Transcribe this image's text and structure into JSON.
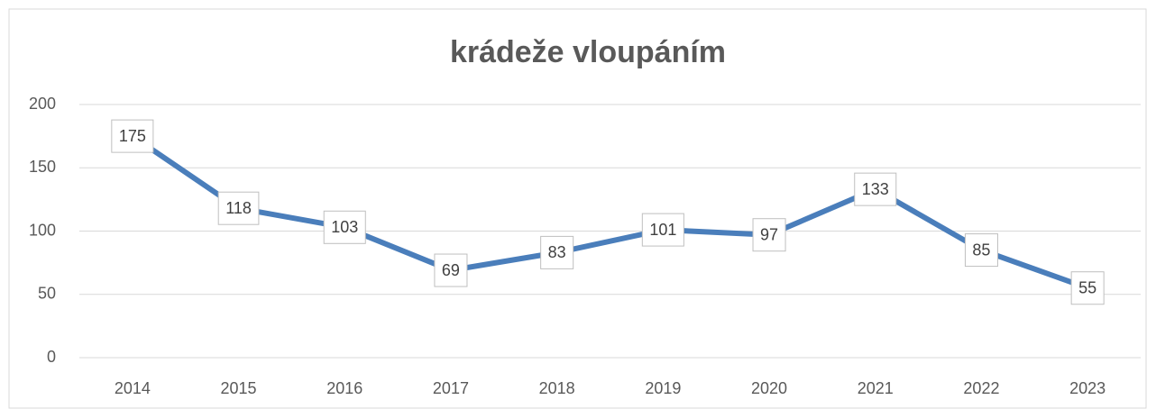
{
  "chart_data": {
    "type": "line",
    "title": "krádeže vloupáním",
    "categories": [
      "2014",
      "2015",
      "2016",
      "2017",
      "2018",
      "2019",
      "2020",
      "2021",
      "2022",
      "2023"
    ],
    "values": [
      175,
      118,
      103,
      69,
      83,
      101,
      97,
      133,
      85,
      55
    ],
    "color": "#4a7ebb",
    "ylim": [
      0,
      200
    ],
    "yticks": [
      0,
      50,
      100,
      150,
      200
    ],
    "grid": true
  }
}
